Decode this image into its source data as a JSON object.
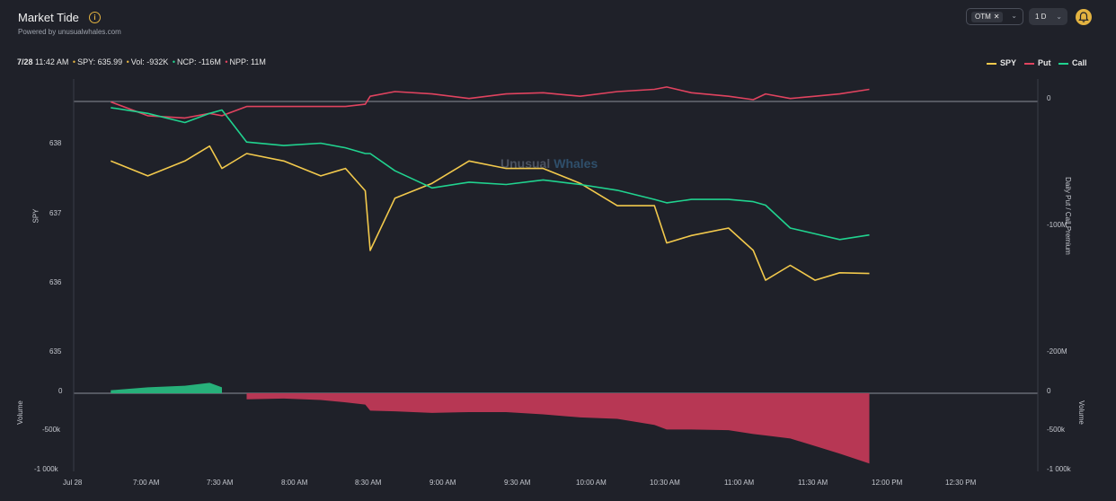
{
  "header": {
    "title": "Market Tide",
    "subtitle": "Powered by unusualwhales.com",
    "otm_filter": "OTM",
    "range": "1 D"
  },
  "status": {
    "time": "7/28",
    "clock": "11:42 AM",
    "spy": "SPY: 635.99",
    "vol": "Vol: -932K",
    "ncp": "NCP: -116M",
    "npp": "NPP: 11M"
  },
  "legend": {
    "spy": "SPY",
    "put": "Put",
    "call": "Call"
  },
  "colors": {
    "spy": "#f2c94c",
    "put": "#e0435f",
    "call": "#20d38f",
    "vol_pos": "#27b07a",
    "vol_neg": "#b73754",
    "bg": "#1f2129"
  },
  "watermark": {
    "part1": "Unusual",
    "part2": "Whales"
  },
  "axes": {
    "spy_title": "SPY",
    "premium_title": "Daily Put / Call Premium",
    "volume_left": "Volume",
    "volume_right": "Volume",
    "spy_ticks": [
      "638",
      "637",
      "636",
      "635"
    ],
    "premium_ticks": [
      "0",
      "-100M",
      "-200M"
    ],
    "volume_ticks_left": [
      "0",
      "-500k",
      "-1 000k"
    ],
    "volume_ticks_right": [
      "0",
      "-500k",
      "-1 000k"
    ],
    "time_ticks": [
      "Jul 28",
      "7:00 AM",
      "7:30 AM",
      "8:00 AM",
      "8:30 AM",
      "9:00 AM",
      "9:30 AM",
      "10:00 AM",
      "10:30 AM",
      "11:00 AM",
      "11:30 AM",
      "12:00 PM",
      "12:30 PM"
    ]
  },
  "chart_data": {
    "type": "line",
    "x_unit": "time",
    "x": [
      "6:35 AM",
      "6:50 AM",
      "7:05 AM",
      "7:15 AM",
      "7:20 AM",
      "7:30 AM",
      "7:45 AM",
      "8:00 AM",
      "8:10 AM",
      "8:18 AM",
      "8:20 AM",
      "8:30 AM",
      "8:45 AM",
      "9:00 AM",
      "9:15 AM",
      "9:30 AM",
      "9:45 AM",
      "10:00 AM",
      "10:15 AM",
      "10:20 AM",
      "10:30 AM",
      "10:45 AM",
      "10:55 AM",
      "11:00 AM",
      "11:10 AM",
      "11:20 AM",
      "11:30 AM",
      "11:42 AM"
    ],
    "series": [
      {
        "name": "SPY",
        "axis": "left",
        "values": [
          637.5,
          637.3,
          637.5,
          637.7,
          637.4,
          637.6,
          637.5,
          637.3,
          637.4,
          637.1,
          636.3,
          637.0,
          637.2,
          637.5,
          637.4,
          637.4,
          637.2,
          636.9,
          636.9,
          636.4,
          636.5,
          636.6,
          636.3,
          635.9,
          636.1,
          635.9,
          636.0,
          635.99
        ]
      },
      {
        "name": "Put",
        "axis": "right",
        "values": [
          0,
          -12,
          -14,
          -10,
          -12,
          -4,
          -4,
          -4,
          -4,
          -2,
          5,
          9,
          7,
          3,
          7,
          8,
          5,
          9,
          11,
          13,
          8,
          5,
          2,
          7,
          3,
          5,
          7,
          11
        ]
      },
      {
        "name": "Call",
        "axis": "right",
        "values": [
          -5,
          -10,
          -18,
          -10,
          -7,
          -35,
          -38,
          -36,
          -40,
          -45,
          -45,
          -60,
          -75,
          -70,
          -72,
          -68,
          -72,
          -77,
          -85,
          -88,
          -85,
          -85,
          -87,
          -90,
          -110,
          -115,
          -120,
          -116
        ]
      },
      {
        "name": "Volume",
        "axis": "volume",
        "values": [
          10,
          20,
          25,
          35,
          20,
          -80,
          -70,
          -90,
          -120,
          -150,
          -230,
          -240,
          -260,
          -250,
          -250,
          -280,
          -320,
          -340,
          -420,
          -480,
          -480,
          -490,
          -540,
          -560,
          -600,
          -700,
          -800,
          -932
        ]
      }
    ],
    "spy_ylim": [
      634.6,
      638.6
    ],
    "premium_ylim": [
      -240,
      20
    ],
    "volume_ylim": [
      -1000,
      30
    ],
    "grid": false,
    "legend_position": "top-right"
  }
}
